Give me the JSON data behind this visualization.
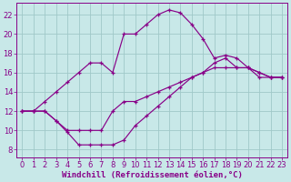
{
  "bg_color": "#c8e8e8",
  "line_color": "#880088",
  "grid_color": "#a0c8c8",
  "xlabel": "Windchill (Refroidissement éolien,°C)",
  "xlabel_fontsize": 6.5,
  "tick_fontsize": 6.0,
  "xlim": [
    -0.5,
    23.5
  ],
  "ylim": [
    7.2,
    23.2
  ],
  "yticks": [
    8,
    10,
    12,
    14,
    16,
    18,
    20,
    22
  ],
  "xticks": [
    0,
    1,
    2,
    3,
    4,
    5,
    6,
    7,
    8,
    9,
    10,
    11,
    12,
    13,
    14,
    15,
    16,
    17,
    18,
    19,
    20,
    21,
    22,
    23
  ],
  "curve_top_x": [
    0,
    1,
    2,
    3,
    4,
    5,
    6,
    7,
    8,
    9,
    10,
    11,
    12,
    13,
    14,
    15,
    16,
    17,
    18,
    19,
    20,
    21,
    22,
    23
  ],
  "curve_top_y": [
    12,
    12,
    13,
    14,
    15,
    16,
    17,
    17,
    16,
    20,
    20,
    21,
    22,
    22.5,
    22.2,
    21,
    19.5,
    17.5,
    17.8,
    17.5,
    16.5,
    16,
    15.5,
    15.5
  ],
  "curve_mid_x": [
    0,
    1,
    2,
    3,
    4,
    5,
    6,
    7,
    8,
    9,
    10,
    11,
    12,
    13,
    14,
    15,
    16,
    17,
    18,
    19,
    20,
    21,
    22,
    23
  ],
  "curve_mid_y": [
    12,
    12,
    12,
    11,
    10,
    10,
    10,
    10,
    12,
    13,
    13,
    13.5,
    14,
    14.5,
    15,
    15.5,
    16,
    16.5,
    16.5,
    16.5,
    16.5,
    16,
    15.5,
    15.5
  ],
  "curve_bot_x": [
    0,
    1,
    2,
    3,
    4,
    5,
    6,
    7,
    8,
    9,
    10,
    11,
    12,
    13,
    14,
    15,
    16,
    17,
    18,
    19,
    20,
    21,
    22,
    23
  ],
  "curve_bot_y": [
    12,
    12,
    12,
    11,
    9.8,
    8.5,
    8.5,
    8.5,
    8.5,
    9,
    10.5,
    11.5,
    12.5,
    13.5,
    14.5,
    15.5,
    16,
    17,
    17.5,
    16.5,
    16.5,
    15.5,
    15.5,
    15.5
  ]
}
